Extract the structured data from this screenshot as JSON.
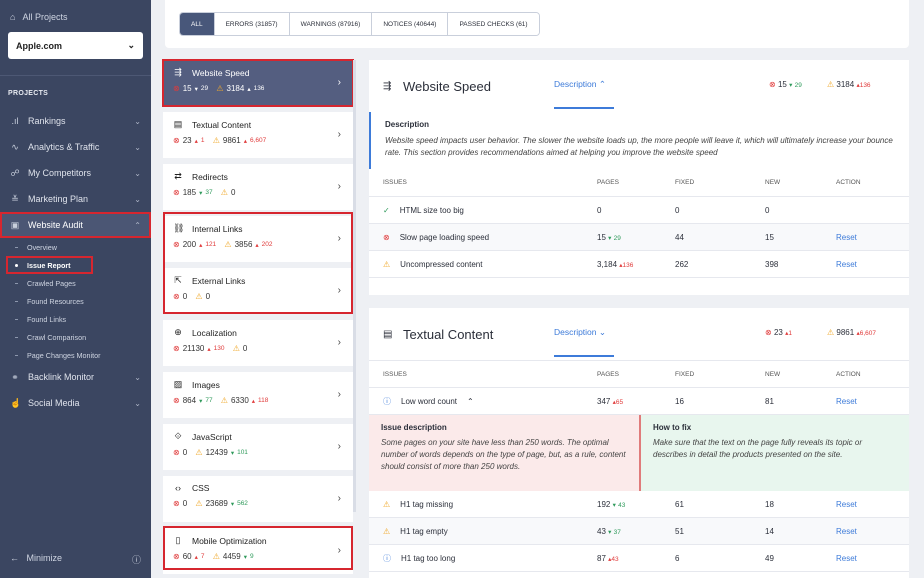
{
  "sidebar": {
    "all_projects": "All Projects",
    "project": "Apple.com",
    "projects_heading": "PROJECTS",
    "menu": [
      {
        "label": "Rankings",
        "icon": "bar-chart-icon"
      },
      {
        "label": "Analytics & Traffic",
        "icon": "pulse-icon"
      },
      {
        "label": "My Competitors",
        "icon": "users-icon"
      },
      {
        "label": "Marketing Plan",
        "icon": "checklist-icon"
      },
      {
        "label": "Website Audit",
        "icon": "audit-icon"
      }
    ],
    "sub": [
      "Overview",
      "Issue Report",
      "Crawled Pages",
      "Found Resources",
      "Found Links",
      "Crawl Comparison",
      "Page Changes Monitor"
    ],
    "menu2": [
      {
        "label": "Backlink Monitor",
        "icon": "link-icon"
      },
      {
        "label": "Social Media",
        "icon": "thumb-icon"
      }
    ],
    "minimize": "Minimize"
  },
  "filters": [
    "ALL",
    "ERRORS (31857)",
    "WARNINGS (87916)",
    "NOTICES (40644)",
    "PASSED CHECKS (61)"
  ],
  "categories": [
    {
      "name": "Website Speed",
      "err": "15",
      "err_d": "29",
      "err_dir": "dn",
      "warn": "3184",
      "warn_d": "136",
      "warn_dir": "up"
    },
    {
      "name": "Textual Content",
      "err": "23",
      "err_d": "1",
      "err_dir": "up",
      "warn": "9861",
      "warn_d": "6,607",
      "warn_dir": "up"
    },
    {
      "name": "Redirects",
      "err": "185",
      "err_d": "37",
      "err_dir": "dn",
      "warn": "0",
      "warn_d": "",
      "warn_dir": ""
    },
    {
      "name": "Internal Links",
      "err": "200",
      "err_d": "121",
      "err_dir": "up",
      "warn": "3856",
      "warn_d": "202",
      "warn_dir": "up"
    },
    {
      "name": "External Links",
      "err": "0",
      "err_d": "",
      "err_dir": "",
      "warn": "0",
      "warn_d": "",
      "warn_dir": ""
    },
    {
      "name": "Localization",
      "err": "21130",
      "err_d": "130",
      "err_dir": "up",
      "warn": "0",
      "warn_d": "",
      "warn_dir": ""
    },
    {
      "name": "Images",
      "err": "864",
      "err_d": "77",
      "err_dir": "dn",
      "warn": "6330",
      "warn_d": "118",
      "warn_dir": "up"
    },
    {
      "name": "JavaScript",
      "err": "0",
      "err_d": "",
      "err_dir": "",
      "warn": "12439",
      "warn_d": "101",
      "warn_dir": "dn"
    },
    {
      "name": "CSS",
      "err": "0",
      "err_d": "",
      "err_dir": "",
      "warn": "23689",
      "warn_d": "562",
      "warn_dir": "dn"
    },
    {
      "name": "Mobile Optimization",
      "err": "60",
      "err_d": "7",
      "err_dir": "up",
      "warn": "4459",
      "warn_d": "9",
      "warn_dir": "dn"
    }
  ],
  "speed": {
    "title": "Website Speed",
    "desc_link": "Description ⌃",
    "err": "15",
    "err_d": "29",
    "warn": "3184",
    "warn_d": "136",
    "desc_title": "Description",
    "desc_text": "Website speed impacts user behavior. The slower the website loads up, the more people will leave it, which will ultimately increase your bounce rate. This section provides recommendations aimed at helping you improve the website speed",
    "headers": [
      "ISSUES",
      "PAGES",
      "FIXED",
      "NEW",
      "ACTION"
    ],
    "rows": [
      {
        "issue": "HTML size too big",
        "pages": "0",
        "pd": "",
        "fixed": "0",
        "new": "0",
        "action": ""
      },
      {
        "issue": "Slow page loading speed",
        "pages": "15",
        "pd": "29",
        "fixed": "44",
        "new": "15",
        "action": "Reset"
      },
      {
        "issue": "Uncompressed content",
        "pages": "3,184",
        "pd": "136",
        "fixed": "262",
        "new": "398",
        "action": "Reset"
      }
    ]
  },
  "textual": {
    "title": "Textual Content",
    "desc_link": "Description ⌄",
    "err": "23",
    "err_d": "1",
    "warn": "9861",
    "warn_d": "6,607",
    "headers": [
      "ISSUES",
      "PAGES",
      "FIXED",
      "NEW",
      "ACTION"
    ],
    "row1": {
      "issue": "Low word count",
      "pages": "347",
      "pd": "65",
      "fixed": "16",
      "new": "81",
      "action": "Reset"
    },
    "issue_desc_title": "Issue description",
    "issue_desc": "Some pages on your site have less than 250 words. The optimal number of words depends on the type of page, but, as a rule, content should consist of more than 250 words.",
    "fix_title": "How to fix",
    "fix_text": "Make sure that the text on the page fully reveals its topic or describes in detail the products presented on the site.",
    "rows": [
      {
        "issue": "H1 tag missing",
        "pages": "192",
        "pd": "43",
        "fixed": "61",
        "new": "18",
        "action": "Reset"
      },
      {
        "issue": "H1 tag empty",
        "pages": "43",
        "pd": "37",
        "fixed": "51",
        "new": "14",
        "action": "Reset"
      },
      {
        "issue": "H1 tag too long",
        "pages": "87",
        "pd": "43",
        "fixed": "6",
        "new": "49",
        "action": "Reset"
      }
    ]
  }
}
